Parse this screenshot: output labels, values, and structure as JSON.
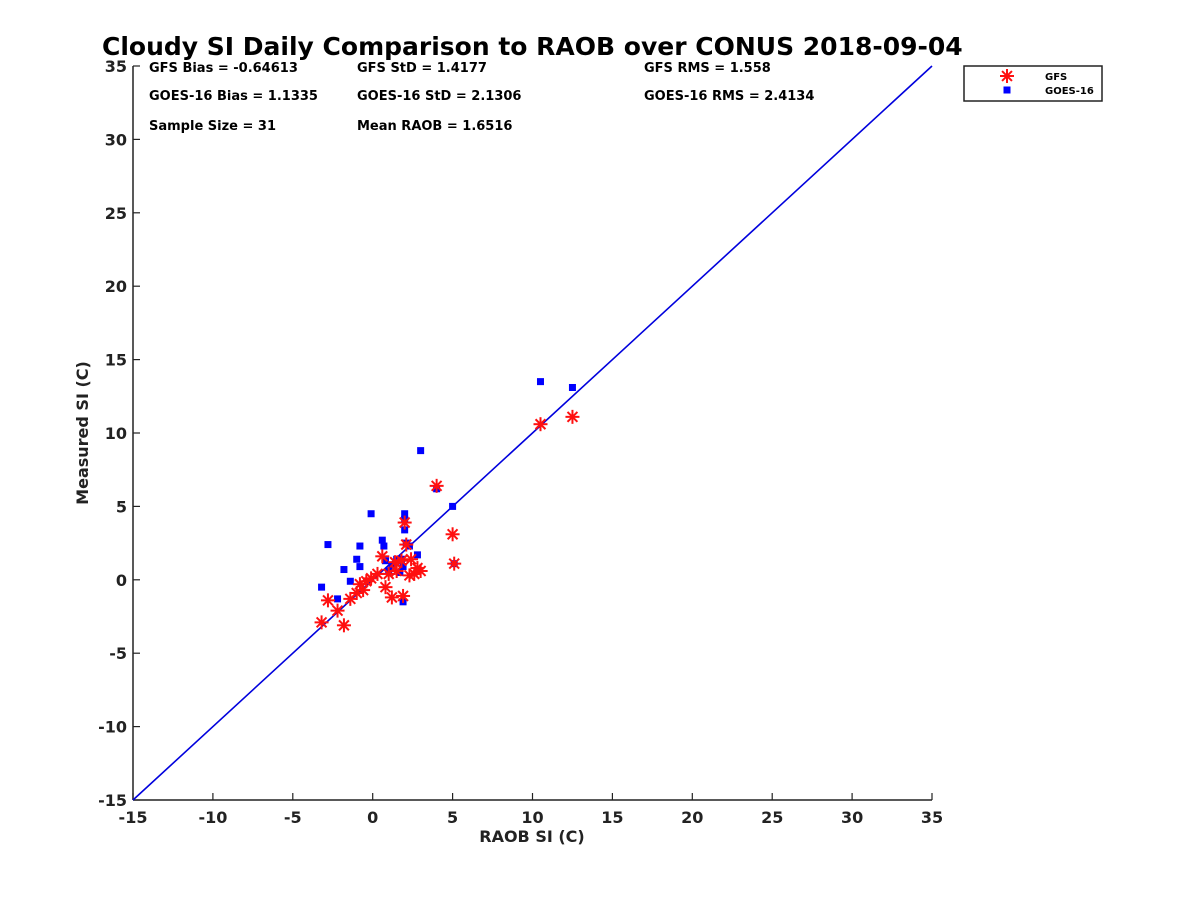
{
  "chart_data": {
    "type": "scatter",
    "title": "Cloudy SI Daily Comparison to RAOB over CONUS 2018-09-04",
    "xlabel": "RAOB SI (C)",
    "ylabel": "Measured SI (C)",
    "xlim": [
      -15,
      35
    ],
    "ylim": [
      -15,
      35
    ],
    "xticks": [
      "-15",
      "-10",
      "-5",
      "0",
      "5",
      "10",
      "15",
      "20",
      "25",
      "30",
      "35"
    ],
    "yticks": [
      "-15",
      "-10",
      "-5",
      "0",
      "5",
      "10",
      "15",
      "20",
      "25",
      "30",
      "35"
    ],
    "grid": false,
    "legend_position": "top-right",
    "reference_line": {
      "x": [
        -15,
        35
      ],
      "y": [
        -15,
        35
      ],
      "color": "#0000dd"
    },
    "stats": {
      "gfs_bias": "GFS Bias = -0.64613",
      "gfs_std": "GFS StD = 1.4177",
      "gfs_rms": "GFS RMS = 1.558",
      "goes_bias": "GOES-16 Bias = 1.1335",
      "goes_std": "GOES-16 StD = 2.1306",
      "goes_rms": "GOES-16 RMS = 2.4134",
      "sample_size": "Sample Size = 31",
      "mean_raob": "Mean RAOB = 1.6516"
    },
    "series": [
      {
        "name": "GFS",
        "marker": "asterisk",
        "color": "#ff1010",
        "points": [
          [
            -3.2,
            -2.9
          ],
          [
            -2.8,
            -1.4
          ],
          [
            -2.2,
            -2.1
          ],
          [
            -1.8,
            -3.1
          ],
          [
            -1.4,
            -1.3
          ],
          [
            -1.0,
            -0.9
          ],
          [
            -0.8,
            -0.3
          ],
          [
            -0.6,
            -0.7
          ],
          [
            -0.4,
            -0.1
          ],
          [
            -0.1,
            0.1
          ],
          [
            0.3,
            0.4
          ],
          [
            0.6,
            1.6
          ],
          [
            0.8,
            -0.5
          ],
          [
            1.0,
            0.4
          ],
          [
            1.2,
            -1.2
          ],
          [
            1.5,
            0.6
          ],
          [
            1.8,
            1.3
          ],
          [
            1.9,
            -1.1
          ],
          [
            2.0,
            3.9
          ],
          [
            2.1,
            2.4
          ],
          [
            2.3,
            0.3
          ],
          [
            2.6,
            0.4
          ],
          [
            2.8,
            0.8
          ],
          [
            3.0,
            0.6
          ],
          [
            4.0,
            6.4
          ],
          [
            5.0,
            3.1
          ],
          [
            5.1,
            1.1
          ],
          [
            10.5,
            10.6
          ],
          [
            12.5,
            11.1
          ],
          [
            2.4,
            1.4
          ],
          [
            1.4,
            1.2
          ]
        ]
      },
      {
        "name": "GOES-16",
        "marker": "square",
        "color": "#0000ff",
        "points": [
          [
            -3.2,
            -0.5
          ],
          [
            -2.8,
            2.4
          ],
          [
            -2.2,
            -1.3
          ],
          [
            -1.8,
            0.7
          ],
          [
            -1.4,
            -0.1
          ],
          [
            -1.0,
            1.4
          ],
          [
            -0.8,
            2.3
          ],
          [
            -0.8,
            0.9
          ],
          [
            -0.1,
            4.5
          ],
          [
            0.6,
            2.7
          ],
          [
            0.7,
            2.3
          ],
          [
            0.8,
            1.3
          ],
          [
            1.2,
            1.0
          ],
          [
            1.5,
            1.4
          ],
          [
            1.7,
            0.5
          ],
          [
            1.8,
            1.4
          ],
          [
            1.9,
            0.9
          ],
          [
            1.9,
            -1.5
          ],
          [
            2.0,
            4.5
          ],
          [
            2.0,
            4.1
          ],
          [
            2.0,
            3.4
          ],
          [
            2.1,
            2.5
          ],
          [
            2.3,
            2.3
          ],
          [
            2.8,
            1.7
          ],
          [
            3.0,
            8.8
          ],
          [
            4.0,
            6.2
          ],
          [
            5.0,
            5.0
          ],
          [
            5.1,
            1.1
          ],
          [
            10.5,
            13.5
          ],
          [
            12.5,
            13.1
          ],
          [
            1.0,
            0.6
          ]
        ]
      }
    ]
  }
}
